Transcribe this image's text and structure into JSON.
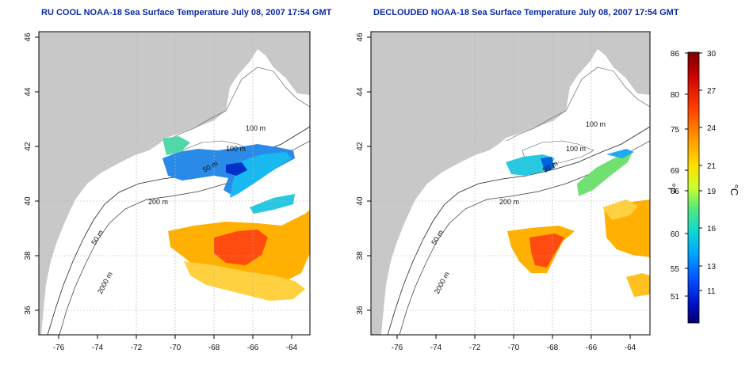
{
  "maps": [
    {
      "title": "RU COOL NOAA-18 Sea Surface Temperature July 08, 2007 17:54 GMT",
      "isobath_labels": [
        "100 m",
        "100 m",
        "200 m",
        "50 m",
        "2000 m",
        "50 m"
      ]
    },
    {
      "title": "DECLOUDED NOAA-18 Sea Surface Temperature July 08, 2007 17:54 GMT",
      "isobath_labels": [
        "100 m",
        "100 m",
        "200 m",
        "50 m",
        "2000 m",
        "50 m"
      ]
    }
  ],
  "axes": {
    "x_ticks": [
      "-76",
      "-74",
      "-72",
      "-70",
      "-68",
      "-66",
      "-64"
    ],
    "y_ticks": [
      "46",
      "44",
      "42",
      "40",
      "38",
      "36"
    ]
  },
  "colorbar": {
    "fahrenheit_ticks": [
      "86",
      "80",
      "75",
      "69",
      "66",
      "60",
      "55",
      "51"
    ],
    "celsius_ticks": [
      "30",
      "27",
      "24",
      "21",
      "19",
      "16",
      "13",
      "11"
    ],
    "fahrenheit_unit": "°F",
    "celsius_unit": "°C",
    "colors": [
      "#7a0000",
      "#c40000",
      "#ff3a00",
      "#ff8a00",
      "#ffd000",
      "#e8ff20",
      "#8cf050",
      "#20e0b0",
      "#00c8ff",
      "#0080ff",
      "#0030e0",
      "#000080"
    ]
  },
  "colors": {
    "land": "#c8c8c8",
    "ocean": "#ffffff",
    "grid": "#b4b4b4",
    "title": "#0b2aa6"
  }
}
